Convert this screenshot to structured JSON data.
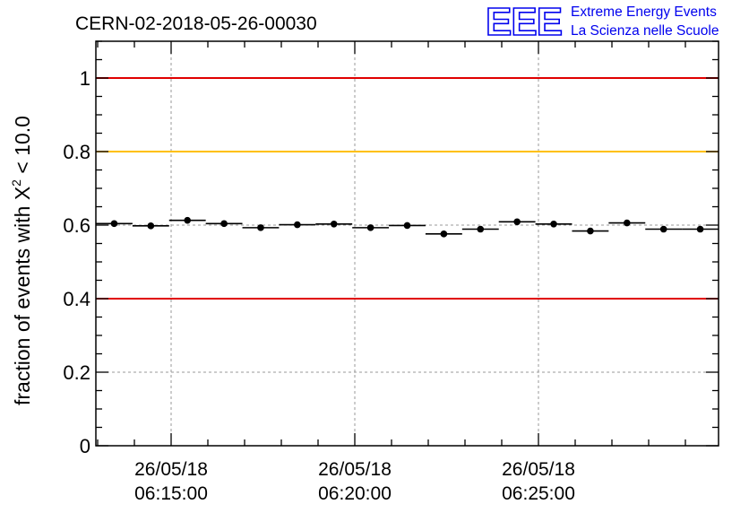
{
  "chart_data": {
    "type": "scatter",
    "title": "CERN-02-2018-05-26-00030",
    "ylabel": {
      "prefix": "fraction of events with ",
      "symbol": "X",
      "superscript": "2",
      "suffix": " < 10.0"
    },
    "xlabel": "",
    "ylim": [
      0,
      1.1
    ],
    "y_ticks": [
      "0",
      "0.2",
      "0.4",
      "0.6",
      "0.8",
      "1"
    ],
    "y_tick_values": [
      0,
      0.2,
      0.4,
      0.6,
      0.8,
      1.0
    ],
    "x_tick_labels": [
      {
        "date": "26/05/18",
        "time": "06:15:00"
      },
      {
        "date": "26/05/18",
        "time": "06:20:00"
      },
      {
        "date": "26/05/18",
        "time": "06:25:00"
      }
    ],
    "grid": true,
    "reference_lines": [
      {
        "y": 1.0,
        "color": "#e00000"
      },
      {
        "y": 0.8,
        "color": "#ffc000"
      },
      {
        "y": 0.4,
        "color": "#e00000"
      }
    ],
    "marker_color": "#000000",
    "points": [
      0.604,
      0.598,
      0.613,
      0.604,
      0.593,
      0.601,
      0.603,
      0.593,
      0.599,
      0.576,
      0.589,
      0.609,
      0.603,
      0.584,
      0.606,
      0.589,
      0.589
    ]
  },
  "logo": {
    "mark": "EEE",
    "line1": "Extreme Energy Events",
    "line2": "La Scienza nelle Scuole",
    "color": "#0000ee"
  }
}
